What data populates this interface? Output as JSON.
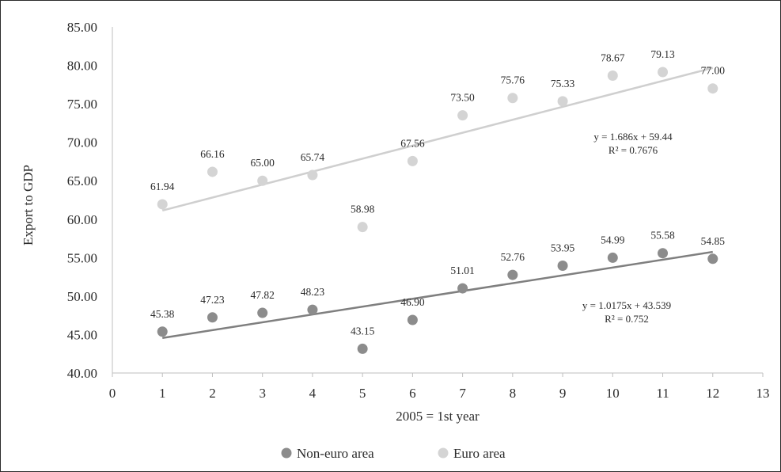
{
  "chart_data": {
    "type": "scatter",
    "title": "",
    "xlabel": "2005 = 1st year",
    "ylabel": "Export to GDP",
    "xlim": [
      0,
      13
    ],
    "ylim": [
      40,
      85
    ],
    "x_ticks": [
      0,
      1,
      2,
      3,
      4,
      5,
      6,
      7,
      8,
      9,
      10,
      11,
      12,
      13
    ],
    "y_ticks": [
      40,
      45,
      50,
      55,
      60,
      65,
      70,
      75,
      80,
      85
    ],
    "y_tick_format": "2 decimals",
    "grid": false,
    "legend_position": "bottom",
    "x": [
      1,
      2,
      3,
      4,
      5,
      6,
      7,
      8,
      9,
      10,
      11,
      12
    ],
    "series": [
      {
        "name": "Non-euro area",
        "color": "#8c8c8c",
        "values": [
          45.38,
          47.23,
          47.82,
          48.23,
          43.15,
          46.9,
          51.01,
          52.76,
          53.95,
          54.99,
          55.58,
          54.85
        ],
        "data_labels": [
          "45.38",
          "47.23",
          "47.82",
          "48.23",
          "43.15",
          "46.90",
          "51.01",
          "52.76",
          "53.95",
          "54.99",
          "55.58",
          "54.85"
        ],
        "trendline": {
          "type": "linear",
          "slope": 1.0175,
          "intercept": 43.539,
          "r2": 0.752,
          "color": "#7f7f7f"
        },
        "equation_line1": "y = 1.0175x + 43.539",
        "equation_line2": "R² = 0.752"
      },
      {
        "name": "Euro area",
        "color": "#d4d4d4",
        "values": [
          61.94,
          66.16,
          65.0,
          65.74,
          58.98,
          67.56,
          73.5,
          75.76,
          75.33,
          78.67,
          79.13,
          77.0
        ],
        "data_labels": [
          "61.94",
          "66.16",
          "65.00",
          "65.74",
          "58.98",
          "67.56",
          "73.50",
          "75.76",
          "75.33",
          "78.67",
          "79.13",
          "77.00"
        ],
        "trendline": {
          "type": "linear",
          "slope": 1.686,
          "intercept": 59.44,
          "r2": 0.7676,
          "color": "#cfcfcf"
        },
        "equation_line1": "y = 1.686x + 59.44",
        "equation_line2": "R² = 0.7676"
      }
    ]
  }
}
